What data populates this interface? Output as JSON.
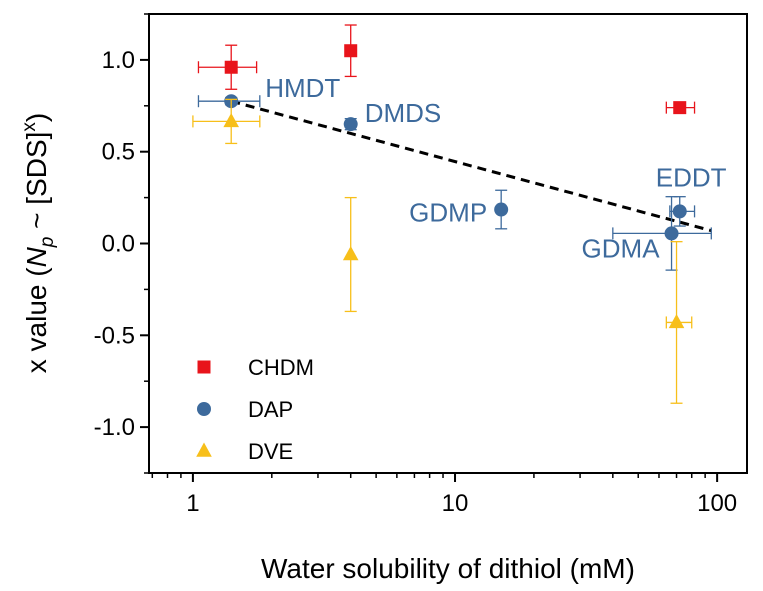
{
  "chart_data": {
    "type": "scatter",
    "xlabel": "Water solubility of dithiol (mM)",
    "ylabel_parts": [
      "x value (",
      "N",
      "p",
      " ~ [SDS]",
      "x",
      ")"
    ],
    "x_scale": "log",
    "xlim": [
      0.68,
      130
    ],
    "ylim": [
      -1.25,
      1.25
    ],
    "x_ticks": [
      {
        "value": 1,
        "label": "1"
      },
      {
        "value": 10,
        "label": "10"
      },
      {
        "value": 100,
        "label": "100"
      }
    ],
    "y_ticks": [
      {
        "value": 1.0,
        "label": "1.0"
      },
      {
        "value": 0.5,
        "label": "0.5"
      },
      {
        "value": 0.0,
        "label": "0.0"
      },
      {
        "value": -0.5,
        "label": "-0.5"
      },
      {
        "value": -1.0,
        "label": "-1.0"
      }
    ],
    "y_minor_step": 0.25,
    "legend_position": "bottom-left",
    "series": [
      {
        "name": "CHDM",
        "color": "#e8141b",
        "marker": "square",
        "points": [
          {
            "x": 1.4,
            "y": 0.96,
            "y_err": 0.12,
            "x_err_lo": 0.35,
            "x_err_hi": 0.35
          },
          {
            "x": 4.0,
            "y": 1.05,
            "y_err": 0.14,
            "x_err_lo": 0,
            "x_err_hi": 0
          },
          {
            "x": 72,
            "y": 0.74,
            "y_err": 0.02,
            "x_err_lo": 8,
            "x_err_hi": 10
          }
        ]
      },
      {
        "name": "DAP",
        "color": "#3d6a9c",
        "marker": "circle",
        "points": [
          {
            "x": 1.4,
            "y": 0.775,
            "y_err": 0.02,
            "x_err_lo": 0.35,
            "x_err_hi": 0.4
          },
          {
            "x": 4.0,
            "y": 0.65,
            "y_err": 0.03,
            "x_err_lo": 0,
            "x_err_hi": 0
          },
          {
            "x": 15,
            "y": 0.185,
            "y_err": 0.105,
            "x_err_lo": 0,
            "x_err_hi": 0
          },
          {
            "x": 72,
            "y": 0.175,
            "y_err": 0.08,
            "x_err_lo": 6,
            "x_err_hi": 10
          },
          {
            "x": 67,
            "y": 0.055,
            "y_err": 0.2,
            "x_err_lo": 27,
            "x_err_hi": 28
          }
        ]
      },
      {
        "name": "DVE",
        "color": "#f7bf1a",
        "marker": "triangle",
        "points": [
          {
            "x": 1.4,
            "y": 0.665,
            "y_err": 0.12,
            "x_err_lo": 0.4,
            "x_err_hi": 0.4
          },
          {
            "x": 4.0,
            "y": -0.06,
            "y_err": 0.31,
            "x_err_lo": 0,
            "x_err_hi": 0
          },
          {
            "x": 70,
            "y": -0.43,
            "y_err": 0.44,
            "x_err_lo": 6,
            "x_err_hi": 10
          }
        ]
      }
    ],
    "point_labels": [
      {
        "text": "HMDT",
        "x": 1.4,
        "y": 0.775,
        "anchor": "start",
        "dx": 34,
        "dy": -4
      },
      {
        "text": "DMDS",
        "x": 4.0,
        "y": 0.65,
        "anchor": "start",
        "dx": 14,
        "dy": -2
      },
      {
        "text": "GDMP",
        "x": 15,
        "y": 0.185,
        "anchor": "end",
        "dx": -14,
        "dy": 12
      },
      {
        "text": "EDDT",
        "x": 72,
        "y": 0.175,
        "anchor": "start",
        "dx": -24,
        "dy": -25
      },
      {
        "text": "GDMA",
        "x": 67,
        "y": 0.055,
        "anchor": "end",
        "dx": -12,
        "dy": 24
      }
    ],
    "point_label_color": "#3d6a9c",
    "fit_line": {
      "style": "dashed",
      "color": "#000000",
      "points": [
        [
          1.4,
          0.775
        ],
        [
          95,
          0.07
        ]
      ]
    }
  }
}
